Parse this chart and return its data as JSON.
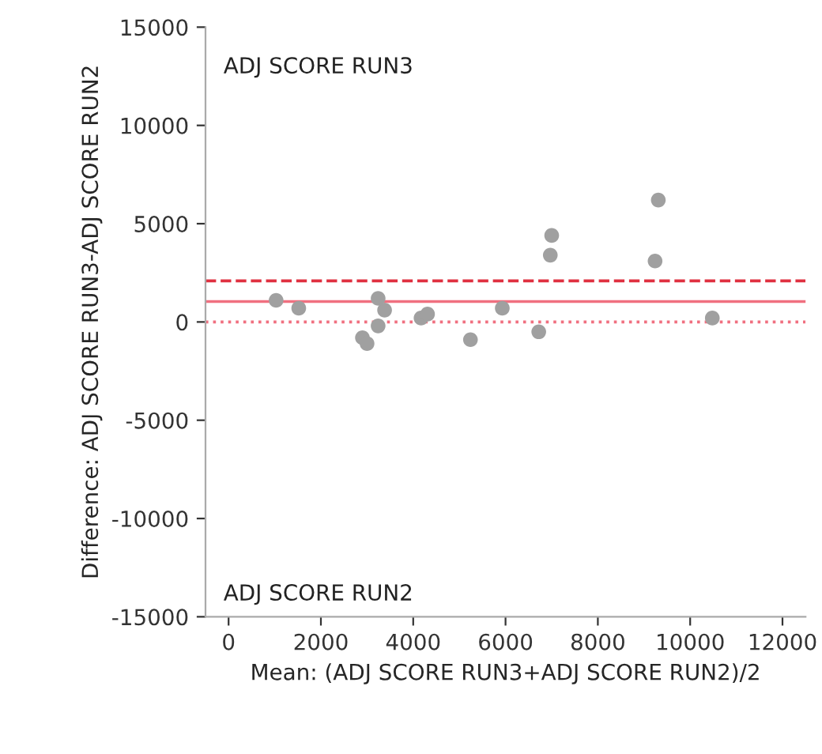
{
  "chart_data": {
    "type": "scatter",
    "xlabel": "Mean: (ADJ SCORE RUN3+ADJ SCORE RUN2)/2",
    "ylabel": "Difference: ADJ SCORE RUN3-ADJ SCORE RUN2",
    "x": [
      1030,
      1520,
      3240,
      3380,
      3240,
      2900,
      3000,
      4170,
      4310,
      5240,
      5930,
      6720,
      6970,
      7000,
      9240,
      9310,
      10480
    ],
    "series": [
      {
        "color": "#a0a0a0",
        "values": [
          1100,
          700,
          1200,
          600,
          -200,
          -800,
          -1100,
          200,
          400,
          -900,
          700,
          -500,
          3400,
          4400,
          3100,
          6200,
          200
        ]
      }
    ],
    "marker": "circle",
    "xlim": [
      -500,
      12500
    ],
    "xticks": [
      0,
      2000,
      4000,
      6000,
      8000,
      10000,
      12000
    ],
    "ylim": [
      -15000,
      15000
    ],
    "yticks": [
      -15000,
      -10000,
      -5000,
      0,
      5000,
      10000,
      15000
    ],
    "ref_lines": [
      {
        "axis": "y",
        "value": 1040,
        "color": "#f07080",
        "line_style": "solid"
      },
      {
        "axis": "y",
        "value": 2090,
        "color": "#e03040",
        "line_style": "dashed"
      },
      {
        "axis": "y",
        "value": 0,
        "color": "#f07080",
        "line_style": "dotted"
      }
    ],
    "annotations": [
      {
        "text": "ADJ SCORE RUN3"
      },
      {
        "text": "ADJ SCORE RUN2"
      }
    ],
    "grid": false,
    "legend": false
  }
}
